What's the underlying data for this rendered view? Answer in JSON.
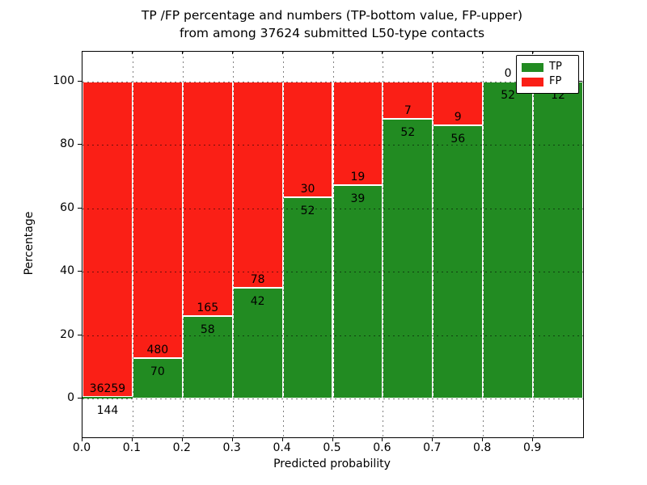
{
  "figure": {
    "title_line1": "TP /FP percentage and numbers (TP-bottom value, FP-upper)",
    "title_line2": "from among 37624 submitted L50-type contacts"
  },
  "chart_data": {
    "type": "bar",
    "stacked": true,
    "orientation": "vertical",
    "title": "TP /FP percentage and numbers (TP-bottom value, FP-upper) from among 37624 submitted L50-type contacts",
    "xlabel": "Predicted probability",
    "ylabel": "Percentage",
    "xlim": [
      0.0,
      1.0
    ],
    "ylim_display": [
      -12,
      110
    ],
    "bin_width": 0.1,
    "x_tick_labels": [
      "0.0",
      "0.1",
      "0.2",
      "0.3",
      "0.4",
      "0.5",
      "0.6",
      "0.7",
      "0.8",
      "0.9"
    ],
    "y_tick_values": [
      0,
      20,
      40,
      60,
      80,
      100
    ],
    "y_tick_labels": [
      "0",
      "20",
      "40",
      "60",
      "80",
      "100"
    ],
    "grid": true,
    "legend": {
      "position": "upper right",
      "entries": [
        {
          "label": "TP",
          "color": "#228b22"
        },
        {
          "label": "FP",
          "color": "#fa1f16"
        }
      ]
    },
    "series": [
      {
        "name": "TP",
        "values": [
          144,
          70,
          58,
          42,
          52,
          39,
          52,
          56,
          52,
          12
        ]
      },
      {
        "name": "FP",
        "values": [
          36259,
          480,
          165,
          78,
          30,
          19,
          7,
          9,
          0,
          null
        ]
      }
    ],
    "bins": [
      {
        "x_start": 0.0,
        "tp": 144,
        "fp": 36259,
        "tp_label": "144",
        "fp_label": "36259",
        "green_pct": 0.4
      },
      {
        "x_start": 0.1,
        "tp": 70,
        "fp": 480,
        "tp_label": "70",
        "fp_label": "480",
        "green_pct": 12.73
      },
      {
        "x_start": 0.2,
        "tp": 58,
        "fp": 165,
        "tp_label": "58",
        "fp_label": "165",
        "green_pct": 26.01
      },
      {
        "x_start": 0.3,
        "tp": 42,
        "fp": 78,
        "tp_label": "42",
        "fp_label": "78",
        "green_pct": 35.0
      },
      {
        "x_start": 0.4,
        "tp": 52,
        "fp": 30,
        "tp_label": "52",
        "fp_label": "30",
        "green_pct": 63.41
      },
      {
        "x_start": 0.5,
        "tp": 39,
        "fp": 19,
        "tp_label": "39",
        "fp_label": "19",
        "green_pct": 67.24
      },
      {
        "x_start": 0.6,
        "tp": 52,
        "fp": 7,
        "tp_label": "52",
        "fp_label": "7",
        "green_pct": 88.14
      },
      {
        "x_start": 0.7,
        "tp": 56,
        "fp": 9,
        "tp_label": "56",
        "fp_label": "9",
        "green_pct": 86.15
      },
      {
        "x_start": 0.8,
        "tp": 52,
        "fp": 0,
        "tp_label": "52",
        "fp_label": "0",
        "green_pct": 100
      },
      {
        "x_start": 0.9,
        "tp": 12,
        "tp_label": "12",
        "fp_label": null,
        "green_pct": 100
      }
    ],
    "colors": {
      "tp": "#228b22",
      "fp": "#fa1f16",
      "grid": "#000000",
      "frame": "#000000",
      "background": "#ffffff"
    }
  }
}
